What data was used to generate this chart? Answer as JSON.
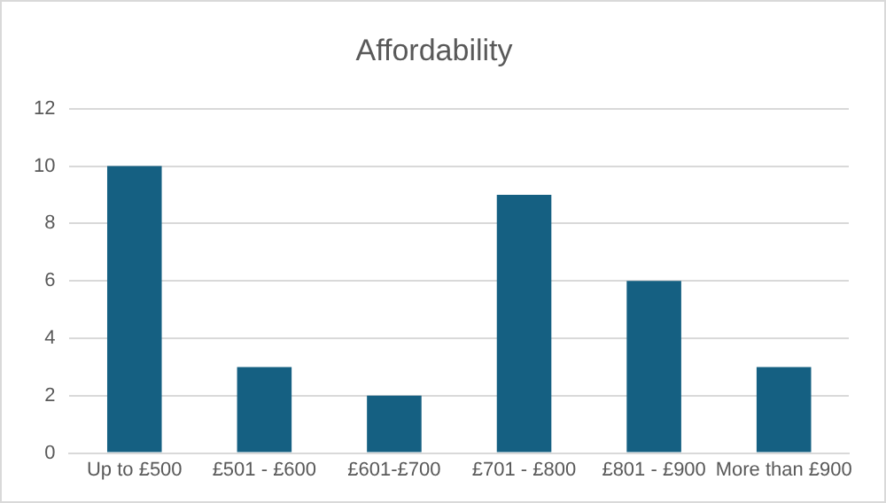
{
  "chart_data": {
    "type": "bar",
    "title": "Affordability",
    "categories": [
      "Up to £500",
      "£501 - £600",
      "£601-£700",
      "£701 - £800",
      "£801 - £900",
      "More than £900"
    ],
    "values": [
      10,
      3,
      2,
      9,
      6,
      3
    ],
    "color": "#156082",
    "ylim": [
      0,
      12
    ],
    "yticks": [
      0,
      2,
      4,
      6,
      8,
      10,
      12
    ],
    "grid": "y",
    "legend": false
  }
}
